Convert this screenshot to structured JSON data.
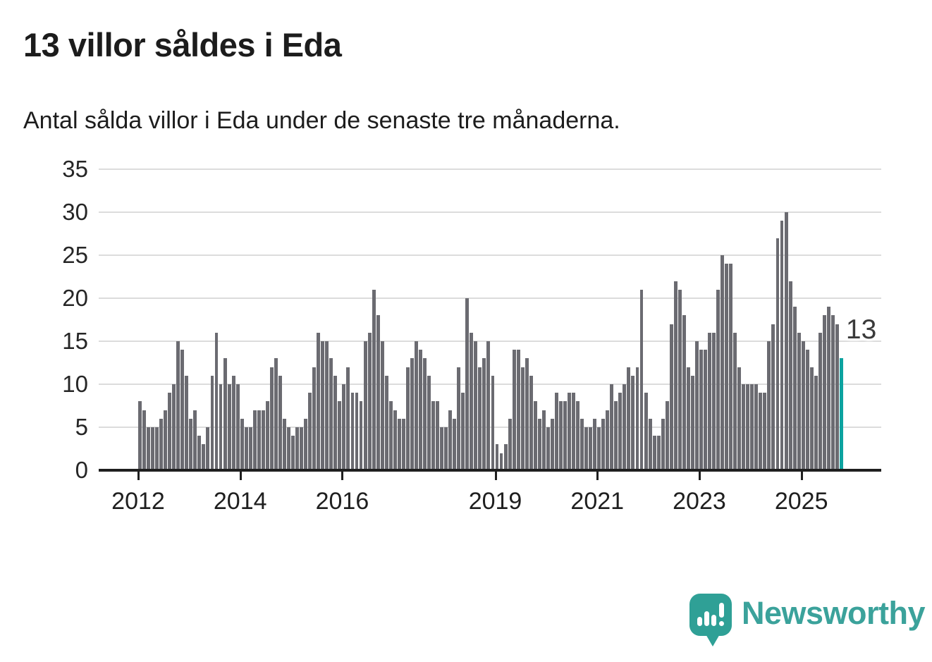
{
  "header": {
    "title": "13 villor såldes i Eda",
    "subtitle": "Antal sålda villor i Eda under de senaste tre månaderna."
  },
  "chart_data": {
    "type": "bar",
    "title": "13 villor såldes i Eda",
    "xlabel": "",
    "ylabel": "",
    "ylim": [
      0,
      35
    ],
    "yticks": [
      0,
      5,
      10,
      15,
      20,
      25,
      30,
      35
    ],
    "grid": true,
    "legend": null,
    "x_start": "2012-01",
    "x_tick_labels": [
      "2012",
      "2014",
      "2016",
      "2019",
      "2021",
      "2023",
      "2025"
    ],
    "x_tick_indices": [
      0,
      24,
      48,
      84,
      108,
      132,
      156
    ],
    "values": [
      8,
      7,
      5,
      5,
      5,
      6,
      7,
      9,
      10,
      15,
      14,
      11,
      6,
      7,
      4,
      3,
      5,
      11,
      16,
      10,
      13,
      10,
      11,
      10,
      6,
      5,
      5,
      7,
      7,
      7,
      8,
      12,
      13,
      11,
      6,
      5,
      4,
      5,
      5,
      6,
      9,
      12,
      16,
      15,
      15,
      13,
      11,
      8,
      10,
      12,
      9,
      9,
      8,
      15,
      16,
      21,
      18,
      15,
      11,
      8,
      7,
      6,
      6,
      12,
      13,
      15,
      14,
      13,
      11,
      8,
      8,
      5,
      5,
      7,
      6,
      12,
      9,
      20,
      16,
      15,
      12,
      13,
      15,
      11,
      3,
      2,
      3,
      6,
      14,
      14,
      12,
      13,
      11,
      8,
      6,
      7,
      5,
      6,
      9,
      8,
      8,
      9,
      9,
      8,
      6,
      5,
      5,
      6,
      5,
      6,
      7,
      10,
      8,
      9,
      10,
      12,
      11,
      12,
      21,
      9,
      6,
      4,
      4,
      6,
      8,
      17,
      22,
      21,
      18,
      12,
      11,
      15,
      14,
      14,
      16,
      16,
      21,
      25,
      24,
      24,
      16,
      12,
      10,
      10,
      10,
      10,
      9,
      9,
      15,
      17,
      27,
      29,
      30,
      22,
      19,
      16,
      15,
      14,
      12,
      11,
      16,
      18,
      19,
      18,
      17,
      13
    ],
    "highlight_index": 165,
    "highlight_value": 13,
    "highlight_label": "13",
    "bar_color": "#6b6b71",
    "highlight_color": "#0da3a0",
    "grid_color": "#dcdcdc",
    "axis_color": "#1f1f1f"
  },
  "annotation": {
    "last_value_label": "13"
  },
  "footer": {
    "brand": "Newsworthy",
    "logo_icon": "newsworthy-chart-bubble-icon",
    "brand_color": "#3ba29b"
  }
}
